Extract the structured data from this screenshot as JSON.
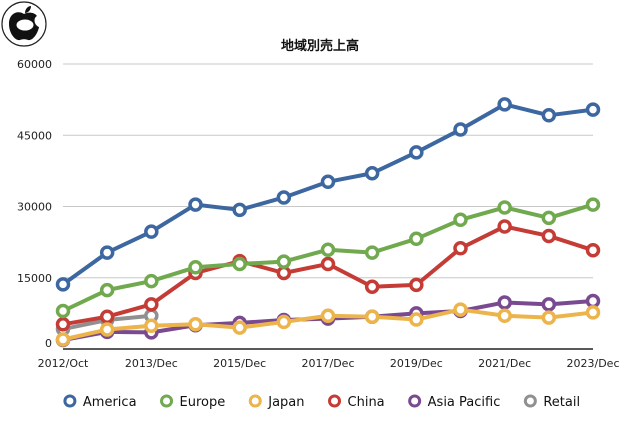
{
  "chart_data": {
    "type": "line",
    "title": "地域別売上高",
    "xlabel": "",
    "ylabel": "",
    "ylim": [
      0,
      60000
    ],
    "yticks": [
      0,
      15000,
      30000,
      45000,
      60000
    ],
    "grid": true,
    "legend_position": "bottom",
    "categories": [
      "2012/Oct",
      "",
      "2013/Dec",
      "",
      "2015/Dec",
      "",
      "2017/Dec",
      "",
      "2019/Dec",
      "",
      "2021/Dec",
      "",
      "2023/Dec"
    ],
    "series": [
      {
        "name": "America",
        "color": "#3d67a0",
        "values": [
          13600,
          20300,
          24700,
          30400,
          29300,
          31900,
          35200,
          37000,
          41400,
          46200,
          51500,
          49200,
          50400
        ]
      },
      {
        "name": "Europe",
        "color": "#71a94f",
        "values": [
          8000,
          12400,
          14300,
          17200,
          17900,
          18400,
          20900,
          20300,
          23200,
          27200,
          29800,
          27600,
          30400
        ]
      },
      {
        "name": "Japan",
        "color": "#ecb44a",
        "values": [
          2000,
          4100,
          4900,
          5200,
          4500,
          5700,
          7000,
          6800,
          6200,
          8300,
          7000,
          6600,
          7700
        ]
      },
      {
        "name": "China",
        "color": "#c43c35",
        "values": [
          5200,
          6800,
          9400,
          16000,
          18500,
          16000,
          17900,
          13100,
          13500,
          21200,
          25800,
          23800,
          20800
        ]
      },
      {
        "name": "Asia Pacific",
        "color": "#7a4a91",
        "values": [
          1900,
          3600,
          3500,
          5000,
          5500,
          6100,
          6400,
          6800,
          7500,
          8000,
          9800,
          9400,
          10100
        ]
      },
      {
        "name": "Retail",
        "color": "#909090",
        "values": [
          4200,
          6100,
          7000,
          null,
          null,
          null,
          null,
          null,
          null,
          null,
          null,
          null,
          null
        ]
      }
    ]
  }
}
